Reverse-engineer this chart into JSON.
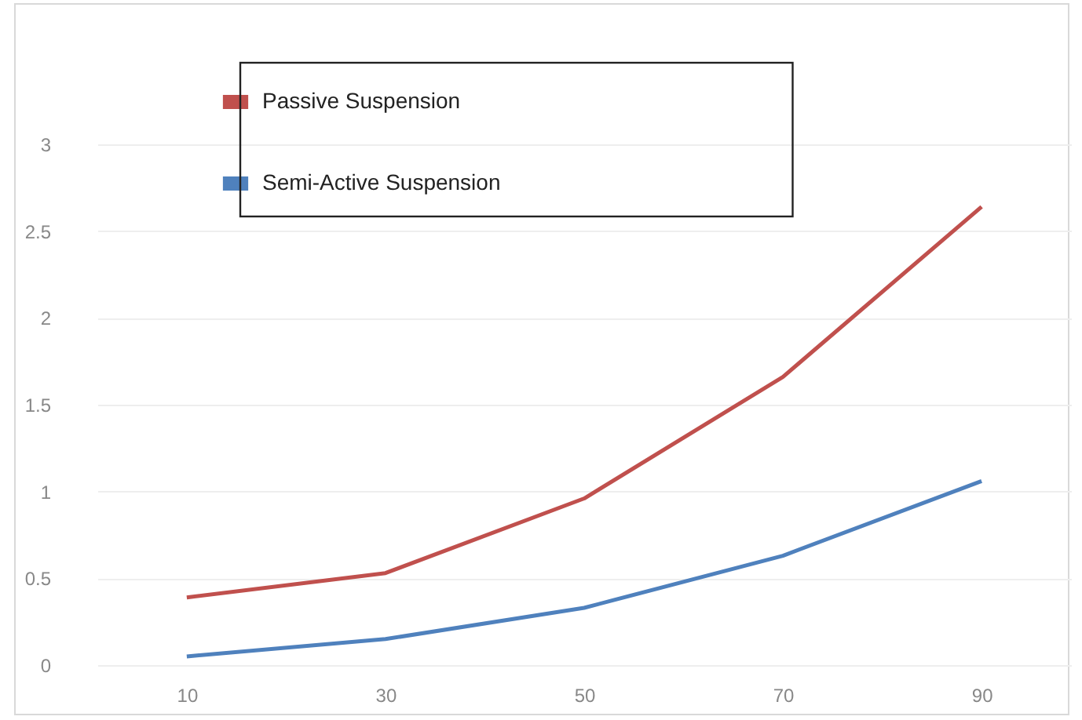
{
  "chart_data": {
    "type": "line",
    "categories": [
      "10",
      "30",
      "50",
      "70",
      "90"
    ],
    "series": [
      {
        "name": "Passive Suspension",
        "color": "#c0504d",
        "values": [
          0.39,
          0.53,
          0.96,
          1.66,
          2.64
        ]
      },
      {
        "name": "Semi-Active Suspension",
        "color": "#4f81bd",
        "values": [
          0.05,
          0.15,
          0.33,
          0.63,
          1.06
        ]
      }
    ],
    "ylim": [
      0,
      3
    ],
    "yticks": [
      0,
      0.5,
      1,
      1.5,
      2,
      2.5,
      3
    ],
    "grid": "y",
    "legend": "top left",
    "marker": "none",
    "line_style": "solid"
  }
}
